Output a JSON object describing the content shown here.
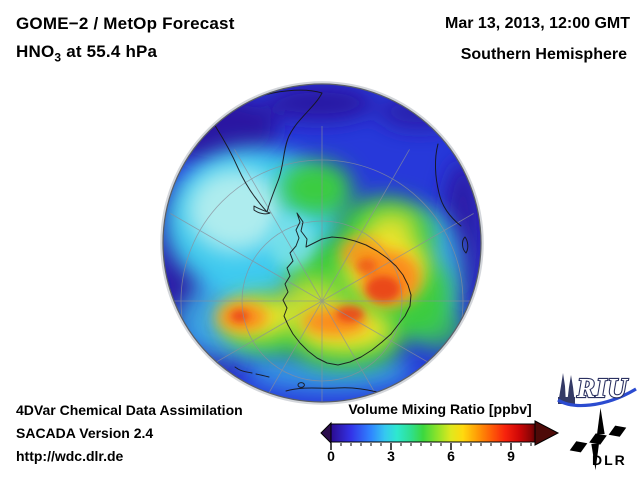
{
  "header": {
    "product": "GOME−2 / MetOp Forecast",
    "species_prefix": "HNO",
    "species_sub": "3",
    "species_suffix": " at 55.4 hPa",
    "datetime": "Mar 13, 2013, 12:00 GMT",
    "region": "Southern Hemisphere"
  },
  "colorbar": {
    "title": "Volume Mixing Ratio [ppbv]",
    "tick_labels": [
      "0",
      "3",
      "6",
      "9"
    ]
  },
  "footer": {
    "line1": "4DVar Chemical Data Assimilation",
    "line2": "SACADA Version 2.4",
    "line3": "http://wdc.dlr.de"
  },
  "logos": {
    "riu_text": "RIU",
    "dlr_text": "DLR"
  },
  "chart_data": {
    "type": "heatmap",
    "title": "GOME−2 / MetOp Forecast, HNO3 at 55.4 hPa",
    "timestamp": "Mar 13, 2013, 12:00 GMT",
    "projection": "orthographic globe, Southern Hemisphere (South Pole view)",
    "variable": "HNO3 volume mixing ratio",
    "units": "ppbv",
    "colorbar": {
      "min": 0,
      "max": 10,
      "major_ticks": [
        0,
        3,
        6,
        9
      ],
      "minor_tick_step": 0.5,
      "gradient_stops": [
        {
          "v": 0.0,
          "c": "#2b0b8f"
        },
        {
          "v": 1.0,
          "c": "#3333e8"
        },
        {
          "v": 2.0,
          "c": "#2f86ff"
        },
        {
          "v": 2.7,
          "c": "#35c8f0"
        },
        {
          "v": 3.3,
          "c": "#2ee8cf"
        },
        {
          "v": 4.0,
          "c": "#2fdf8e"
        },
        {
          "v": 4.6,
          "c": "#3cd83f"
        },
        {
          "v": 5.3,
          "c": "#8ce32a"
        },
        {
          "v": 6.0,
          "c": "#e0e81e"
        },
        {
          "v": 6.6,
          "c": "#ffd90e"
        },
        {
          "v": 7.3,
          "c": "#ff9d06"
        },
        {
          "v": 8.0,
          "c": "#fe5f07"
        },
        {
          "v": 8.7,
          "c": "#f8230c"
        },
        {
          "v": 9.4,
          "c": "#cf0707"
        },
        {
          "v": 10.0,
          "c": "#8a0405"
        },
        {
          "v": 10.2,
          "c": "#5e0205"
        }
      ]
    },
    "field_summary": [
      {
        "area": "mid-latitude background (top and right of disc)",
        "value_ppbv": 1.5
      },
      {
        "area": "dark low-value patches north-west sector and eastern limb",
        "value_ppbv": 0.7
      },
      {
        "area": "pale cyan region over South Pacific / West Antarctic sector (left of centre)",
        "value_ppbv": 3.0
      },
      {
        "area": "green collar from southern South America wrapping clockwise around the pole",
        "value_ppbv": 5.0
      },
      {
        "area": "yellow band over East Antarctica and Ross Sea sector",
        "value_ppbv": 6.5
      },
      {
        "area": "primary orange maximum over East Antarctica right of the pole",
        "value_ppbv": 8.0
      },
      {
        "area": "secondary orange maximum south-west of the pole (8 o'clock)",
        "value_ppbv": 7.5
      },
      {
        "area": "speckled red cores inside the orange maxima",
        "value_ppbv": 9.0
      }
    ],
    "coastlines_shown": [
      "South America",
      "Antarctica",
      "southern Africa",
      "Madagascar",
      "islands south of New Zealand"
    ],
    "graticule": "meridians every 30 deg radiating from pole, latitude circles"
  },
  "colors": {
    "background": "#ffffff",
    "text": "#000000",
    "ocean_base": "#2739da",
    "graticule": "#8a8f9b",
    "coastline": "#15151a",
    "riu_blue": "#2b4bd0",
    "riu_navy": "#2a3060"
  }
}
